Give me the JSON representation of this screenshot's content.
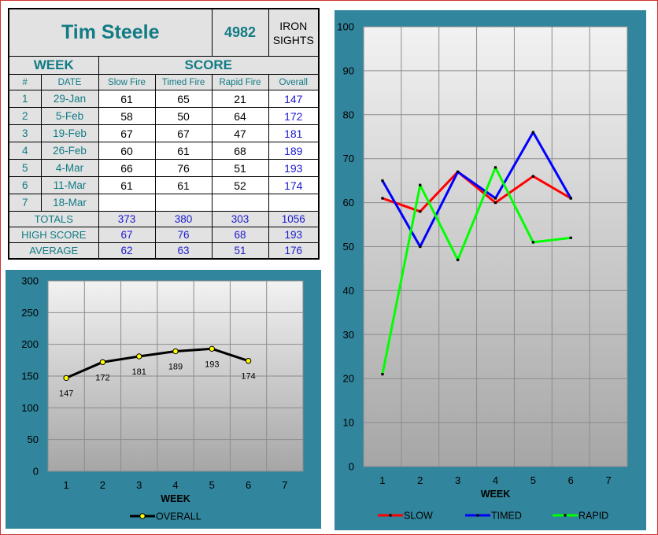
{
  "scorecard": {
    "shooter_name": "Tim Steele",
    "shooter_id": "4982",
    "sights_line1": "IRON",
    "sights_line2": "SIGHTS",
    "week_header": "WEEK",
    "score_header": "SCORE",
    "columns": [
      "#",
      "DATE",
      "Slow Fire",
      "Timed Fire",
      "Rapid Fire",
      "Overall"
    ],
    "rows": [
      {
        "week": "1",
        "date": "29-Jan",
        "slow": "61",
        "timed": "65",
        "rapid": "21",
        "overall": "147"
      },
      {
        "week": "2",
        "date": "5-Feb",
        "slow": "58",
        "timed": "50",
        "rapid": "64",
        "overall": "172"
      },
      {
        "week": "3",
        "date": "19-Feb",
        "slow": "67",
        "timed": "67",
        "rapid": "47",
        "overall": "181"
      },
      {
        "week": "4",
        "date": "26-Feb",
        "slow": "60",
        "timed": "61",
        "rapid": "68",
        "overall": "189"
      },
      {
        "week": "5",
        "date": "4-Mar",
        "slow": "66",
        "timed": "76",
        "rapid": "51",
        "overall": "193"
      },
      {
        "week": "6",
        "date": "11-Mar",
        "slow": "61",
        "timed": "61",
        "rapid": "52",
        "overall": "174"
      },
      {
        "week": "7",
        "date": "18-Mar",
        "slow": "",
        "timed": "",
        "rapid": "",
        "overall": ""
      }
    ],
    "totals": {
      "label": "TOTALS",
      "slow": "373",
      "timed": "380",
      "rapid": "303",
      "overall": "1056"
    },
    "high": {
      "label": "HIGH SCORE",
      "slow": "67",
      "timed": "76",
      "rapid": "68",
      "overall": "193"
    },
    "average": {
      "label": "AVERAGE",
      "slow": "62",
      "timed": "63",
      "rapid": "51",
      "overall": "176"
    }
  },
  "colors": {
    "panel": "#31859c",
    "slow": "#ff0000",
    "timed": "#0000ff",
    "rapid": "#00ff00",
    "overall": "#000000",
    "overall_marker": "#ffff00"
  },
  "chart_data": [
    {
      "type": "line",
      "xlabel": "WEEK",
      "ylabel": "",
      "x": [
        1,
        2,
        3,
        4,
        5,
        6,
        7
      ],
      "ylim": [
        0,
        300
      ],
      "yticks": [
        0,
        50,
        100,
        150,
        200,
        250,
        300
      ],
      "grid": true,
      "legend": "bottom",
      "series": [
        {
          "name": "OVERALL",
          "values": [
            147,
            172,
            181,
            189,
            193,
            174,
            null
          ],
          "data_labels": true
        }
      ]
    },
    {
      "type": "line",
      "xlabel": "WEEK",
      "ylabel": "",
      "x": [
        1,
        2,
        3,
        4,
        5,
        6,
        7
      ],
      "ylim": [
        0,
        100
      ],
      "yticks": [
        0,
        10,
        20,
        30,
        40,
        50,
        60,
        70,
        80,
        90,
        100
      ],
      "grid": true,
      "legend": "bottom",
      "series": [
        {
          "name": "SLOW",
          "values": [
            61,
            58,
            67,
            60,
            66,
            61,
            null
          ]
        },
        {
          "name": "TIMED",
          "values": [
            65,
            50,
            67,
            61,
            76,
            61,
            null
          ]
        },
        {
          "name": "RAPID",
          "values": [
            21,
            64,
            47,
            68,
            51,
            52,
            null
          ]
        }
      ]
    }
  ]
}
